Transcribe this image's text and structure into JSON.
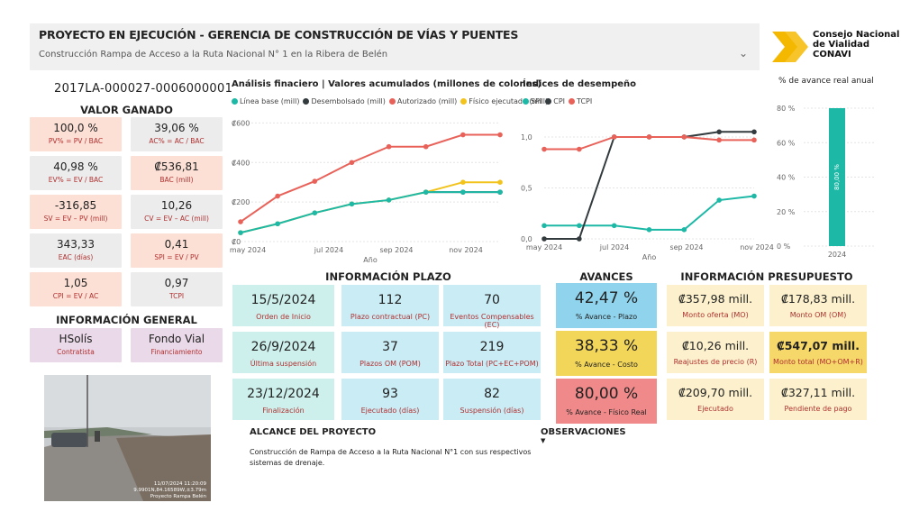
{
  "header": {
    "title": "PROYECTO EN EJECUCIÓN - GERENCIA DE CONSTRUCCIÓN DE VÍAS Y PUENTES",
    "selected_project": "Construcción Rampa de Acceso a la Ruta Nacional N° 1 en la Ribera de Belén"
  },
  "logo": {
    "line1": "Consejo Nacional",
    "line2": "de Vialidad",
    "line3": "CONAVI",
    "color": "#f5b800"
  },
  "project_code": "2017LA-000027-0006000001",
  "valor_ganado": {
    "title": "VALOR GANADO",
    "items": [
      {
        "value": "100,0 %",
        "label": "PV% = PV / BAC"
      },
      {
        "value": "39,06 %",
        "label": "AC% = AC / BAC"
      },
      {
        "value": "40,98 %",
        "label": "EV% = EV / BAC"
      },
      {
        "value": "₡536,81",
        "label": "BAC (mill)"
      },
      {
        "value": "-316,85",
        "label": "SV = EV – PV (mill)"
      },
      {
        "value": "10,26",
        "label": "CV = EV – AC (mill)"
      },
      {
        "value": "343,33",
        "label": "EAC (días)"
      },
      {
        "value": "0,41",
        "label": "SPI = EV / PV"
      },
      {
        "value": "1,05",
        "label": "CPI = EV / AC"
      },
      {
        "value": "0,97",
        "label": "TCPI"
      }
    ]
  },
  "info_general": {
    "title": "INFORMACIÓN GENERAL",
    "contratista": {
      "value": "HSolís",
      "label": "Contratista"
    },
    "financiamiento": {
      "value": "Fondo Vial",
      "label": "Financiamiento"
    }
  },
  "photo": {
    "caption1": "11/07/2024 11:20:09",
    "caption2": "9.9901N,84.16589W,±3.79m",
    "caption3": "Proyecto Rampa Belén"
  },
  "financial_chart": {
    "title": "Análisis finaciero | Valores acumulados (millones de colones)",
    "legend": [
      "Línea base (mill)",
      "Desembolsado (mill)",
      "Autorizado (mill)",
      "Físico ejecutado (mill)"
    ],
    "xlabel": "Año"
  },
  "performance_chart": {
    "title": "Índices de desempeño",
    "legend": [
      "SPI",
      "CPI",
      "TCPI"
    ],
    "xlabel": "Año"
  },
  "annual_chart": {
    "title": "% de avance real anual",
    "bar_label": "80,00 %",
    "category": "2024"
  },
  "chart_data": [
    {
      "type": "line",
      "title": "Análisis finaciero | Valores acumulados (millones de colones)",
      "xlabel": "Año",
      "ylabel": "",
      "x_ticks": [
        "may 2024",
        "jul 2024",
        "sep 2024",
        "nov 2024"
      ],
      "y_ticks": [
        "₡0",
        "₡200",
        "₡400",
        "₡600"
      ],
      "ylim": [
        0,
        620
      ],
      "x": [
        0,
        1,
        2,
        3,
        4,
        5,
        6,
        7
      ],
      "series": [
        {
          "name": "Desembolsado (mill)",
          "color": "#333b3e",
          "values": [
            null,
            null,
            null,
            null,
            null,
            250,
            250,
            250
          ]
        },
        {
          "name": "Autorizado (mill)",
          "color": "#e8625a",
          "values": [
            100,
            230,
            305,
            400,
            480,
            480,
            540,
            540
          ]
        },
        {
          "name": "Físico ejecutado (mill)",
          "color": "#f2c31c",
          "values": [
            45,
            90,
            145,
            190,
            210,
            250,
            300,
            300
          ]
        },
        {
          "name": "Línea base (mill)",
          "color": "#1db8a6",
          "values": [
            45,
            90,
            145,
            190,
            210,
            250,
            250,
            250
          ]
        }
      ]
    },
    {
      "type": "line",
      "title": "Índices de desempeño",
      "xlabel": "Año",
      "x_ticks": [
        "may 2024",
        "jul 2024",
        "sep 2024",
        "nov 2024"
      ],
      "y_ticks": [
        "0,0",
        "0,5",
        "1,0"
      ],
      "ylim": [
        0,
        1.15
      ],
      "x": [
        0,
        1,
        2,
        3,
        4,
        5,
        6
      ],
      "series": [
        {
          "name": "SPI",
          "color": "#1db8a6",
          "values": [
            0.13,
            0.13,
            0.13,
            0.09,
            0.09,
            0.38,
            0.42
          ]
        },
        {
          "name": "CPI",
          "color": "#333b3e",
          "values": [
            0.0,
            0.0,
            1.0,
            1.0,
            1.0,
            1.05,
            1.05
          ]
        },
        {
          "name": "TCPI",
          "color": "#e8625a",
          "values": [
            0.88,
            0.88,
            1.0,
            1.0,
            1.0,
            0.97,
            0.97
          ]
        }
      ]
    },
    {
      "type": "bar",
      "title": "% de avance real anual",
      "categories": [
        "2024"
      ],
      "values": [
        80.0
      ],
      "y_ticks": [
        "0 %",
        "20 %",
        "40 %",
        "60 %",
        "80 %"
      ],
      "ylim": [
        0,
        80
      ],
      "color": "#1db8a6"
    }
  ],
  "plazo": {
    "title": "INFORMACIÓN PLAZO",
    "cards": [
      {
        "value": "15/5/2024",
        "label": "Orden de Inicio",
        "kind": "teal"
      },
      {
        "value": "112",
        "label": "Plazo contractual (PC)",
        "kind": "cyan"
      },
      {
        "value": "70",
        "label": "Eventos Compensables (EC)",
        "kind": "cyan"
      },
      {
        "value": "26/9/2024",
        "label": "Última suspensión",
        "kind": "teal"
      },
      {
        "value": "37",
        "label": "Plazos OM (POM)",
        "kind": "cyan"
      },
      {
        "value": "219",
        "label": "Plazo Total (PC+EC+POM)",
        "kind": "cyan"
      },
      {
        "value": "23/12/2024",
        "label": "Finalización",
        "kind": "teal"
      },
      {
        "value": "93",
        "label": "Ejecutado (días)",
        "kind": "cyan"
      },
      {
        "value": "82",
        "label": "Suspensión (días)",
        "kind": "cyan"
      }
    ]
  },
  "avances": {
    "title": "AVANCES",
    "cards": [
      {
        "value": "42,47 %",
        "label": "% Avance - Plazo",
        "color": "#8fd3ec"
      },
      {
        "value": "38,33 %",
        "label": "% Avance - Costo",
        "color": "#f2d65a"
      },
      {
        "value": "80,00 %",
        "label": "% Avance - Físico Real",
        "color": "#f08a8a"
      }
    ]
  },
  "presupuesto": {
    "title": "INFORMACIÓN PRESUPUESTO",
    "cards": [
      {
        "value": "₡357,98 mill.",
        "label": "Monto oferta (MO)"
      },
      {
        "value": "₡178,83 mill.",
        "label": "Monto OM (OM)"
      },
      {
        "value": "₡10,26 mill.",
        "label": "Reajustes de precio (R)"
      },
      {
        "value": "₡547,07 mill.",
        "label": "Monto total (MO+OM+R)",
        "bold": true
      },
      {
        "value": "₡209,70 mill.",
        "label": "Ejecutado"
      },
      {
        "value": "₡327,11 mill.",
        "label": "Pendiente de pago"
      }
    ]
  },
  "alcance": {
    "title": "ALCANCE DEL PROYECTO",
    "text": "Construcción de Rampa de Acceso a la Ruta Nacional N°1 con sus respectivos sistemas de drenaje."
  },
  "observaciones": {
    "title": "OBSERVACIONES"
  }
}
